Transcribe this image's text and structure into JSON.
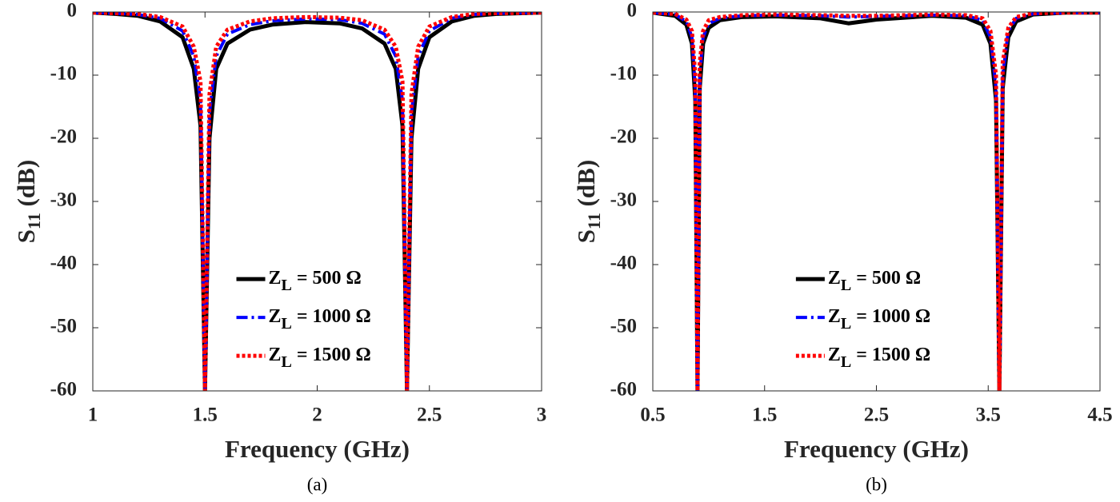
{
  "chart_data": [
    {
      "type": "line",
      "xlabel": "Frequency (GHz)",
      "ylabel": "S11 (dB)",
      "caption": "(a)",
      "x": [
        1,
        1.1,
        1.2,
        1.3,
        1.4,
        1.45,
        1.48,
        1.5,
        1.52,
        1.55,
        1.6,
        1.7,
        1.8,
        1.95,
        2.1,
        2.2,
        2.3,
        2.35,
        2.38,
        2.4,
        2.42,
        2.45,
        2.5,
        2.6,
        2.7,
        2.8,
        3
      ],
      "series": [
        {
          "name": "ZL = 500 Ω",
          "color": "#000000",
          "dash": "solid",
          "values": [
            -0.1,
            -0.3,
            -0.6,
            -1.5,
            -4,
            -9,
            -18,
            -60,
            -20,
            -9,
            -5,
            -2.8,
            -2,
            -1.6,
            -1.8,
            -2.6,
            -5,
            -9,
            -18,
            -60,
            -20,
            -9,
            -4,
            -1.5,
            -0.6,
            -0.3,
            -0.1
          ]
        },
        {
          "name": "ZL = 1000 Ω",
          "color": "#0000ff",
          "dash": "dashdot",
          "values": [
            -0.1,
            -0.2,
            -0.4,
            -1,
            -3,
            -7,
            -14,
            -60,
            -16,
            -7,
            -3.5,
            -2,
            -1.4,
            -1.1,
            -1.2,
            -1.8,
            -3.5,
            -7,
            -14,
            -60,
            -16,
            -7,
            -3,
            -1,
            -0.4,
            -0.2,
            -0.1
          ]
        },
        {
          "name": "ZL = 1500 Ω",
          "color": "#ff0000",
          "dash": "dotted",
          "values": [
            -0.1,
            -0.2,
            -0.3,
            -0.8,
            -2.3,
            -5.5,
            -11,
            -60,
            -13,
            -5.5,
            -2.8,
            -1.5,
            -1,
            -0.8,
            -0.9,
            -1.3,
            -2.8,
            -5.5,
            -11,
            -60,
            -13,
            -5.5,
            -2.3,
            -0.8,
            -0.3,
            -0.2,
            -0.1
          ]
        }
      ],
      "xlim": [
        1,
        3
      ],
      "xticks": [
        1,
        1.5,
        2,
        2.5,
        3
      ],
      "ylim": [
        -60,
        0
      ],
      "yticks": [
        -60,
        -50,
        -40,
        -30,
        -20,
        -10,
        0
      ],
      "grid": false,
      "legend": "lower center"
    },
    {
      "type": "line",
      "xlabel": "Frequency (GHz)",
      "ylabel": "S11 (dB)",
      "caption": "(b)",
      "x": [
        0.5,
        0.7,
        0.8,
        0.85,
        0.88,
        0.9,
        0.92,
        0.95,
        1.0,
        1.1,
        1.3,
        1.6,
        2.0,
        2.25,
        2.5,
        3.0,
        3.3,
        3.45,
        3.52,
        3.57,
        3.6,
        3.63,
        3.68,
        3.75,
        3.9,
        4.2,
        4.5
      ],
      "series": [
        {
          "name": "ZL = 500 Ω",
          "color": "#000000",
          "dash": "solid",
          "values": [
            -0.1,
            -0.6,
            -2,
            -5,
            -14,
            -60,
            -12,
            -5,
            -2.5,
            -1.3,
            -0.8,
            -0.7,
            -1,
            -1.8,
            -1.2,
            -0.6,
            -0.9,
            -2,
            -5,
            -14,
            -60,
            -12,
            -4,
            -1.5,
            -0.4,
            -0.1,
            -0.1
          ]
        },
        {
          "name": "ZL = 1000 Ω",
          "color": "#0000ff",
          "dash": "dashdot",
          "values": [
            -0.1,
            -0.4,
            -1.5,
            -4,
            -12,
            -60,
            -10,
            -4,
            -1.8,
            -1,
            -0.6,
            -0.5,
            -0.6,
            -0.8,
            -0.7,
            -0.5,
            -0.6,
            -1.3,
            -4,
            -12,
            -60,
            -10,
            -3,
            -1,
            -0.3,
            -0.1,
            -0.1
          ]
        },
        {
          "name": "ZL = 1500 Ω",
          "color": "#ff0000",
          "dash": "dotted",
          "values": [
            -0.1,
            -0.3,
            -1.2,
            -3,
            -10,
            -60,
            -8,
            -3,
            -1.3,
            -0.8,
            -0.5,
            -0.4,
            -0.5,
            -0.6,
            -0.6,
            -0.4,
            -0.5,
            -1,
            -3,
            -10,
            -60,
            -8,
            -2.5,
            -0.8,
            -0.2,
            -0.1,
            -0.1
          ]
        }
      ],
      "xlim": [
        0.5,
        4.5
      ],
      "xticks": [
        0.5,
        1.5,
        2.5,
        3.5,
        4.5
      ],
      "ylim": [
        -60,
        0
      ],
      "yticks": [
        -60,
        -50,
        -40,
        -30,
        -20,
        -10,
        0
      ],
      "grid": false,
      "legend": "lower center"
    }
  ]
}
